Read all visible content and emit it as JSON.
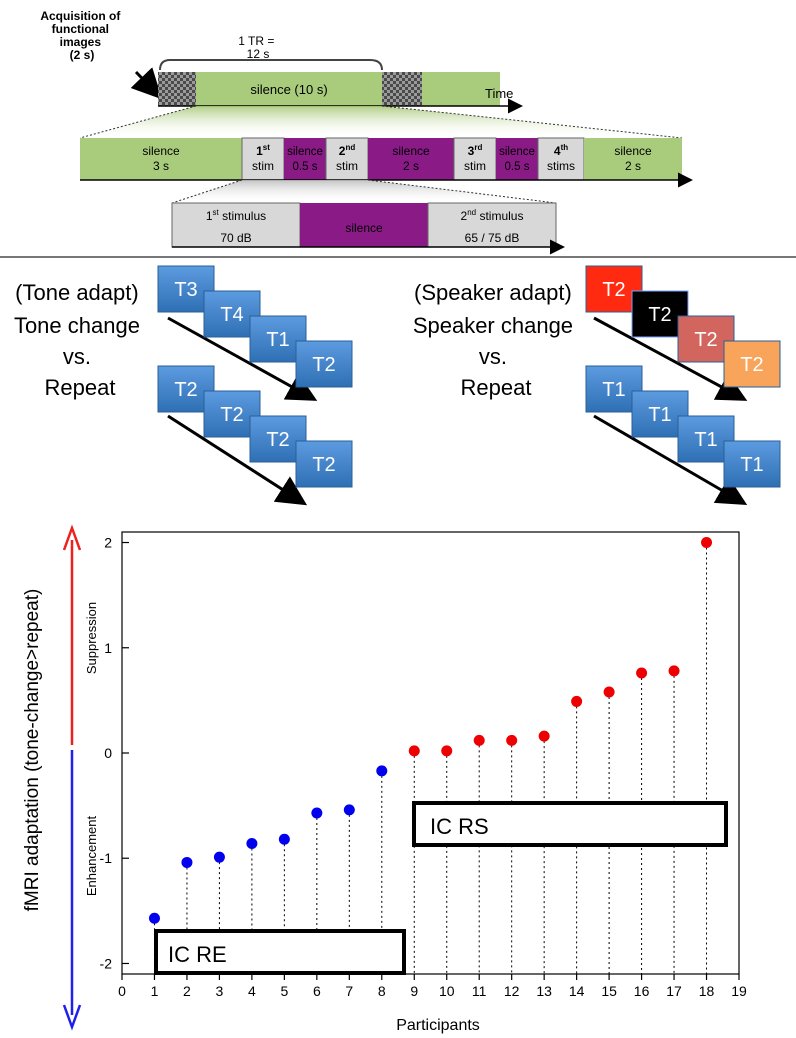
{
  "timeline": {
    "acquisition_label": [
      "Acquisition of",
      "functional",
      "images",
      "(2 s)"
    ],
    "tr_label": [
      "1 TR =",
      "12 s"
    ],
    "silence_main": "silence (10 s)",
    "time_label": "Time",
    "row2": {
      "silence_3s": [
        "silence",
        "3 s"
      ],
      "stim1": [
        "1",
        "st",
        "stim"
      ],
      "silence_05a": [
        "silence",
        "0.5 s"
      ],
      "stim2": [
        "2",
        "nd",
        "stim"
      ],
      "silence_2s_mid": [
        "silence",
        "2 s"
      ],
      "stim3": [
        "3",
        "rd",
        "stim"
      ],
      "silence_05b": [
        "silence",
        "0.5 s"
      ],
      "stim4": [
        "4",
        "th",
        "stims"
      ],
      "silence_2s_end": [
        "silence",
        "2 s"
      ]
    },
    "row3": {
      "first": [
        "1",
        "st",
        " stimulus",
        "70 dB"
      ],
      "silence": "silence",
      "second": [
        "2",
        "nd",
        " stimulus",
        "65 / 75 dB"
      ]
    }
  },
  "conditions": {
    "tone": {
      "label": [
        "(Tone adapt)",
        "Tone change",
        "vs.",
        "Repeat"
      ],
      "change_seq": [
        "T3",
        "T4",
        "T1",
        "T2"
      ],
      "repeat_seq": [
        "T2",
        "T2",
        "T2",
        "T2"
      ]
    },
    "speaker": {
      "label": [
        "(Speaker adapt)",
        "Speaker change",
        "vs.",
        "Repeat"
      ],
      "change_seq": [
        "T2",
        "T2",
        "T2",
        "T2"
      ],
      "change_colors": [
        "#ff2a10",
        "#000000",
        "#d2665e",
        "#f8a45a"
      ],
      "repeat_seq": [
        "T1",
        "T1",
        "T1",
        "T1"
      ]
    },
    "tile_color": "#3d82c6"
  },
  "chart_data": {
    "type": "scatter",
    "xlabel": "Participants",
    "ylabel": "fMRI adaptation (tone-change>repeat)",
    "xlim": [
      0,
      19
    ],
    "ylim": [
      -2.1,
      2.1
    ],
    "x_ticks": [
      "0",
      "1",
      "2",
      "3",
      "4",
      "5",
      "6",
      "7",
      "8",
      "9",
      "10",
      "11",
      "12",
      "13",
      "14",
      "15",
      "16",
      "17",
      "18",
      "19"
    ],
    "y_ticks": [
      "-2",
      "-1",
      "0",
      "1",
      "2"
    ],
    "suppression_label": "Suppression",
    "enhancement_label": "Enhancement",
    "series": [
      {
        "name": "IC RE",
        "color": "#0000ee",
        "x": [
          1,
          2,
          3,
          4,
          5,
          6,
          7,
          8
        ],
        "values": [
          -1.57,
          -1.04,
          -0.99,
          -0.86,
          -0.82,
          -0.57,
          -0.54,
          -0.17
        ]
      },
      {
        "name": "IC RS",
        "color": "#ee0000",
        "x": [
          9,
          10,
          11,
          12,
          13,
          14,
          15,
          16,
          17,
          18
        ],
        "values": [
          0.02,
          0.02,
          0.12,
          0.12,
          0.16,
          0.49,
          0.58,
          0.76,
          0.78,
          2.0
        ]
      }
    ]
  }
}
